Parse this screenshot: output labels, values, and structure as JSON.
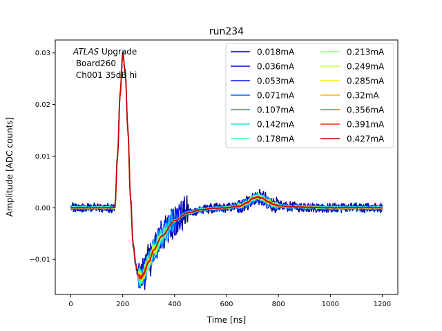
{
  "chart_data": {
    "type": "line",
    "title": "run234",
    "xlabel": "Time [ns]",
    "ylabel": "Amplitude [ADC counts]",
    "xlim": [
      -60,
      1260
    ],
    "ylim": [
      -0.0168,
      0.0325
    ],
    "xticks": [
      0,
      200,
      400,
      600,
      800,
      1000,
      1200
    ],
    "xtick_labels": [
      "0",
      "200",
      "400",
      "600",
      "800",
      "1000",
      "1200"
    ],
    "yticks": [
      -0.01,
      0.0,
      0.01,
      0.02,
      0.03
    ],
    "ytick_labels": [
      "−0.01",
      "0.00",
      "0.01",
      "0.02",
      "0.03"
    ],
    "grid": false,
    "legend": {
      "placement": "upper right",
      "columns": 2
    },
    "annotation": {
      "italic_part": "ATLAS",
      "rest_part": " Upgrade",
      "line2": " Board260",
      "line3": " Ch001 35dB hi"
    },
    "pulse_shape": {
      "x": [
        0,
        170,
        180,
        190,
        200,
        210,
        220,
        230,
        240,
        250,
        260,
        270,
        280,
        300,
        320,
        350,
        400,
        450,
        500,
        550,
        600,
        650,
        680,
        700,
        720,
        740,
        760,
        780,
        800,
        850,
        900,
        1000,
        1100,
        1200
      ],
      "y": [
        0,
        0,
        0.01,
        0.022,
        0.03,
        0.026,
        0.015,
        0.002,
        -0.007,
        -0.011,
        -0.0131,
        -0.0136,
        -0.0128,
        -0.0105,
        -0.0082,
        -0.0055,
        -0.0025,
        -0.001,
        -0.0004,
        -0.0001,
        0.0,
        0.0003,
        0.001,
        0.0018,
        0.0021,
        0.0018,
        0.0012,
        0.0007,
        0.0004,
        0.0002,
        0.0001,
        0.0,
        0.0,
        0.0
      ]
    },
    "series": [
      {
        "name": "0.018mA",
        "color": "#000080",
        "noise": 0.001
      },
      {
        "name": "0.036mA",
        "color": "#0000c8",
        "noise": 0.0008
      },
      {
        "name": "0.053mA",
        "color": "#0010ff",
        "noise": 0.0006
      },
      {
        "name": "0.071mA",
        "color": "#0060ff",
        "noise": 0.0005
      },
      {
        "name": "0.107mA",
        "color": "#00a4ff",
        "noise": 0.0004
      },
      {
        "name": "0.142mA",
        "color": "#16e0e8",
        "noise": 0.0003
      },
      {
        "name": "0.178mA",
        "color": "#4cffaa",
        "noise": 0.00025
      },
      {
        "name": "0.213mA",
        "color": "#86ff70",
        "noise": 0.0002
      },
      {
        "name": "0.249mA",
        "color": "#bcff3a",
        "noise": 0.00015
      },
      {
        "name": "0.285mA",
        "color": "#f4f402",
        "noise": 0.0001
      },
      {
        "name": "0.32mA",
        "color": "#ffb000",
        "noise": 0.0001
      },
      {
        "name": "0.356mA",
        "color": "#ff6c00",
        "noise": 8e-05
      },
      {
        "name": "0.391mA",
        "color": "#ff2800",
        "noise": 6e-05
      },
      {
        "name": "0.427mA",
        "color": "#c40000",
        "noise": 5e-05
      }
    ]
  }
}
